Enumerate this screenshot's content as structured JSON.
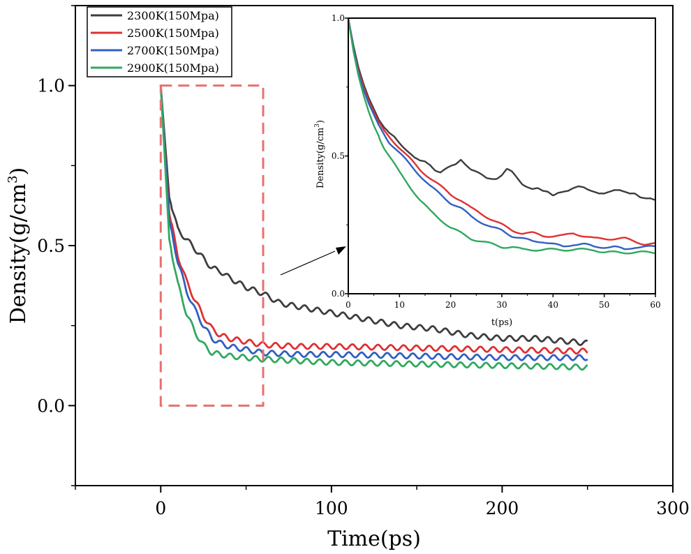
{
  "chart_data": [
    {
      "type": "line",
      "panel": "main",
      "xlabel": "Time(ps)",
      "ylabel": "Density(g/cm3)",
      "xlim": [
        -50,
        300
      ],
      "ylim": [
        -0.25,
        1.25
      ],
      "xticks": [
        0,
        100,
        200,
        300
      ],
      "yticks": [
        0.0,
        0.5,
        1.0
      ],
      "xtick_labels": [
        "0",
        "100",
        "200",
        "300"
      ],
      "ytick_labels": [
        "0.0",
        "0.5",
        "1.0"
      ],
      "legend_position": "top-left",
      "series": [
        {
          "name": "2300K(150Mpa)",
          "color": "#3d3d3d",
          "x": [
            0,
            5,
            10,
            15,
            20,
            25,
            30,
            35,
            40,
            50,
            60,
            70,
            80,
            100,
            120,
            140,
            160,
            180,
            200,
            220,
            240,
            250
          ],
          "y": [
            1.0,
            0.65,
            0.55,
            0.52,
            0.49,
            0.46,
            0.43,
            0.42,
            0.4,
            0.37,
            0.35,
            0.32,
            0.31,
            0.29,
            0.27,
            0.25,
            0.24,
            0.22,
            0.21,
            0.21,
            0.2,
            0.195
          ]
        },
        {
          "name": "2500K(150Mpa)",
          "color": "#e03030",
          "x": [
            0,
            5,
            10,
            15,
            20,
            25,
            30,
            35,
            40,
            50,
            60,
            80,
            100,
            150,
            200,
            250
          ],
          "y": [
            1.0,
            0.6,
            0.47,
            0.39,
            0.33,
            0.28,
            0.24,
            0.22,
            0.21,
            0.2,
            0.19,
            0.185,
            0.185,
            0.18,
            0.175,
            0.17
          ]
        },
        {
          "name": "2700K(150Mpa)",
          "color": "#3060c0",
          "x": [
            0,
            5,
            10,
            15,
            20,
            25,
            30,
            35,
            40,
            50,
            60,
            80,
            100,
            150,
            200,
            250
          ],
          "y": [
            1.0,
            0.58,
            0.45,
            0.36,
            0.3,
            0.25,
            0.21,
            0.195,
            0.185,
            0.175,
            0.165,
            0.16,
            0.16,
            0.155,
            0.15,
            0.15
          ]
        },
        {
          "name": "2900K(150Mpa)",
          "color": "#30a860",
          "x": [
            0,
            5,
            10,
            15,
            20,
            25,
            30,
            35,
            40,
            50,
            60,
            80,
            100,
            150,
            200,
            250
          ],
          "y": [
            1.0,
            0.52,
            0.38,
            0.29,
            0.23,
            0.19,
            0.165,
            0.16,
            0.155,
            0.15,
            0.145,
            0.14,
            0.135,
            0.13,
            0.125,
            0.12
          ]
        }
      ],
      "annotation": {
        "type": "dashed-box",
        "x": [
          0,
          60
        ],
        "y": [
          0.0,
          1.0
        ],
        "color": "#e87070"
      }
    },
    {
      "type": "line",
      "panel": "inset",
      "xlabel": "t(ps)",
      "ylabel": "Density(g/cm3)",
      "xlim": [
        0,
        60
      ],
      "ylim": [
        0,
        1.0
      ],
      "xticks": [
        0,
        10,
        20,
        30,
        40,
        50,
        60
      ],
      "yticks": [
        0.0,
        0.5,
        1.0
      ],
      "xtick_labels": [
        "0",
        "10",
        "20",
        "30",
        "40",
        "50",
        "60"
      ],
      "ytick_labels": [
        "0.0",
        "0.5",
        "1.0"
      ],
      "series": [
        {
          "name": "2300K(150Mpa)",
          "color": "#3d3d3d",
          "x": [
            0,
            1,
            2,
            3,
            4,
            5,
            6,
            7,
            8,
            9,
            10,
            11,
            12,
            13,
            14,
            15,
            16,
            17,
            18,
            19,
            20,
            21,
            22,
            23,
            24,
            25,
            26,
            27,
            28,
            29,
            30,
            31,
            32,
            33,
            34,
            35,
            36,
            37,
            38,
            39,
            40,
            41,
            42,
            43,
            44,
            45,
            46,
            47,
            48,
            49,
            50,
            51,
            52,
            53,
            54,
            55,
            56,
            57,
            58,
            59,
            60
          ],
          "y": [
            1.0,
            0.9,
            0.82,
            0.76,
            0.71,
            0.67,
            0.63,
            0.6,
            0.58,
            0.57,
            0.55,
            0.53,
            0.51,
            0.49,
            0.48,
            0.48,
            0.47,
            0.45,
            0.44,
            0.45,
            0.46,
            0.47,
            0.49,
            0.47,
            0.45,
            0.44,
            0.43,
            0.42,
            0.42,
            0.42,
            0.43,
            0.45,
            0.44,
            0.42,
            0.4,
            0.39,
            0.38,
            0.38,
            0.37,
            0.37,
            0.36,
            0.37,
            0.37,
            0.37,
            0.38,
            0.39,
            0.39,
            0.38,
            0.37,
            0.36,
            0.36,
            0.37,
            0.38,
            0.38,
            0.37,
            0.36,
            0.36,
            0.35,
            0.35,
            0.35,
            0.34
          ]
        },
        {
          "name": "2500K(150Mpa)",
          "color": "#e03030",
          "x": [
            0,
            1,
            2,
            3,
            4,
            5,
            6,
            7,
            8,
            9,
            10,
            12,
            14,
            16,
            18,
            20,
            22,
            24,
            26,
            28,
            30,
            32,
            34,
            36,
            38,
            40,
            42,
            44,
            46,
            48,
            50,
            52,
            54,
            56,
            58,
            60
          ],
          "y": [
            1.0,
            0.89,
            0.81,
            0.75,
            0.7,
            0.66,
            0.62,
            0.59,
            0.57,
            0.55,
            0.53,
            0.49,
            0.45,
            0.42,
            0.39,
            0.36,
            0.34,
            0.31,
            0.29,
            0.27,
            0.25,
            0.23,
            0.22,
            0.22,
            0.21,
            0.21,
            0.21,
            0.22,
            0.21,
            0.2,
            0.2,
            0.2,
            0.2,
            0.19,
            0.18,
            0.18
          ]
        },
        {
          "name": "2700K(150Mpa)",
          "color": "#3060c0",
          "x": [
            0,
            1,
            2,
            3,
            4,
            5,
            6,
            7,
            8,
            9,
            10,
            12,
            14,
            16,
            18,
            20,
            22,
            24,
            26,
            28,
            30,
            32,
            34,
            36,
            38,
            40,
            42,
            44,
            46,
            48,
            50,
            52,
            54,
            56,
            58,
            60
          ],
          "y": [
            1.0,
            0.89,
            0.8,
            0.74,
            0.69,
            0.65,
            0.61,
            0.58,
            0.55,
            0.53,
            0.51,
            0.47,
            0.43,
            0.39,
            0.36,
            0.33,
            0.31,
            0.28,
            0.26,
            0.24,
            0.23,
            0.21,
            0.2,
            0.19,
            0.19,
            0.18,
            0.17,
            0.18,
            0.18,
            0.17,
            0.17,
            0.17,
            0.16,
            0.17,
            0.17,
            0.17
          ]
        },
        {
          "name": "2900K(150Mpa)",
          "color": "#30a860",
          "x": [
            0,
            1,
            2,
            3,
            4,
            5,
            6,
            7,
            8,
            9,
            10,
            12,
            14,
            16,
            18,
            20,
            22,
            24,
            26,
            28,
            30,
            32,
            34,
            36,
            38,
            40,
            42,
            44,
            46,
            48,
            50,
            52,
            54,
            56,
            58,
            60
          ],
          "y": [
            1.0,
            0.88,
            0.79,
            0.72,
            0.66,
            0.61,
            0.57,
            0.53,
            0.5,
            0.47,
            0.44,
            0.39,
            0.34,
            0.3,
            0.27,
            0.24,
            0.22,
            0.2,
            0.19,
            0.18,
            0.17,
            0.17,
            0.16,
            0.16,
            0.16,
            0.16,
            0.16,
            0.16,
            0.16,
            0.16,
            0.15,
            0.15,
            0.15,
            0.15,
            0.15,
            0.15
          ]
        }
      ]
    }
  ]
}
